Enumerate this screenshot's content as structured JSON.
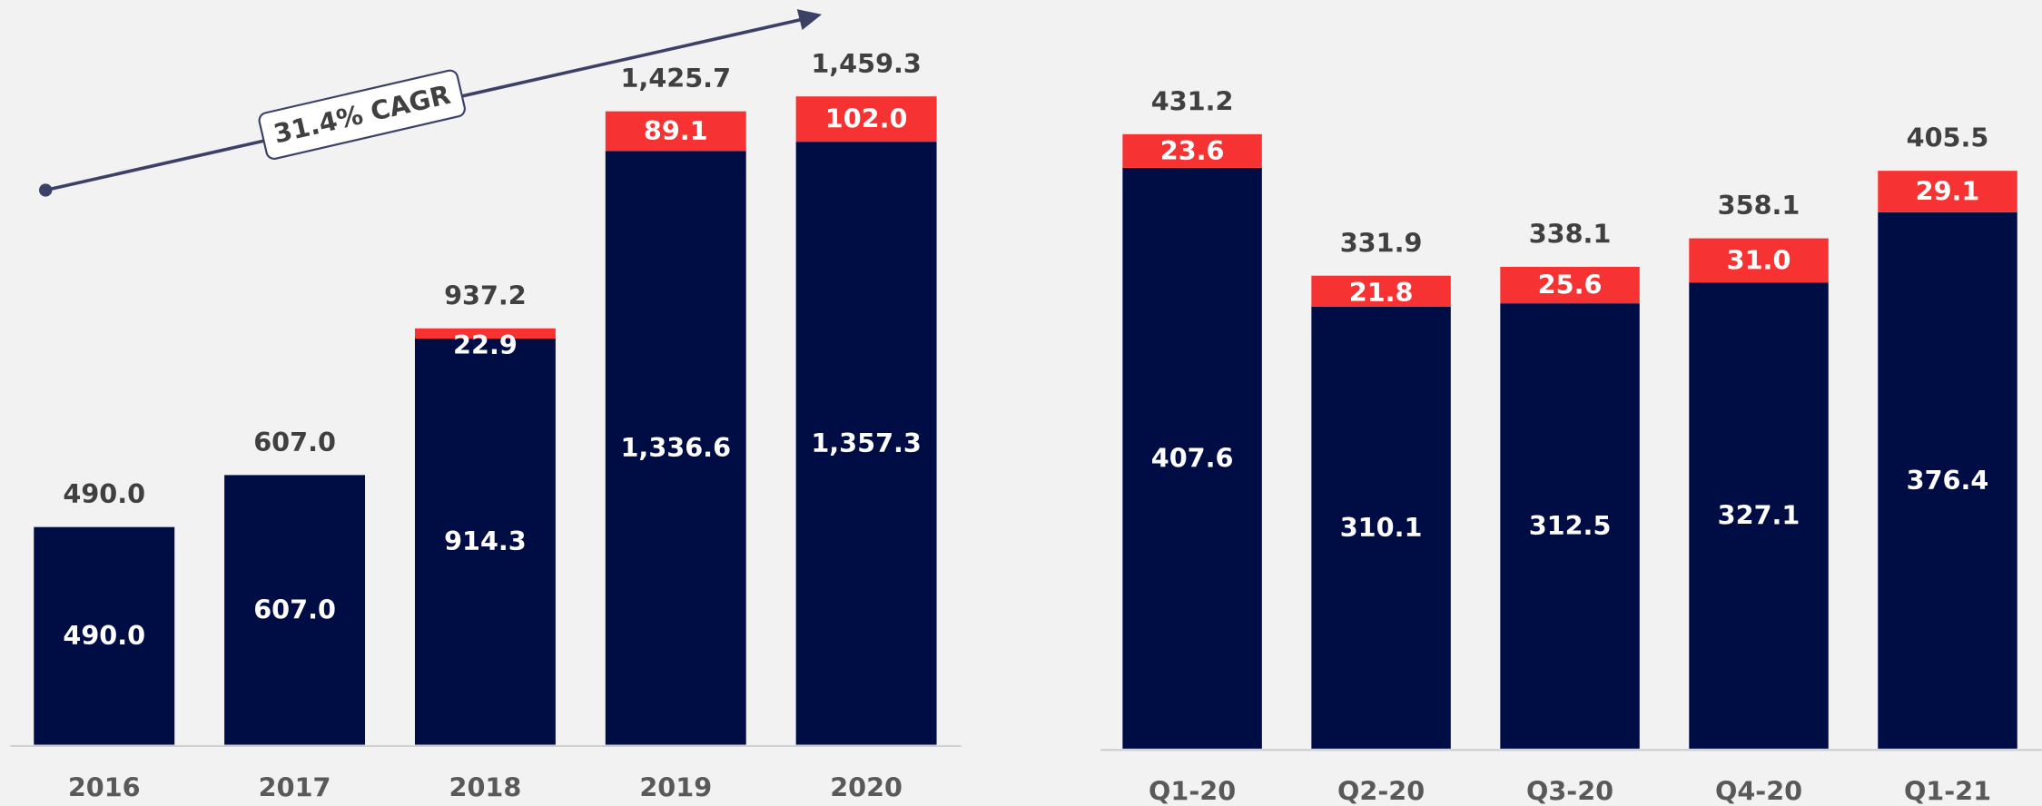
{
  "chart_data": [
    {
      "type": "bar",
      "stacked": true,
      "categories": [
        "2016",
        "2017",
        "2018",
        "2019",
        "2020"
      ],
      "series": [
        {
          "color": "#000d45",
          "values": [
            490.0,
            607.0,
            914.3,
            1336.6,
            1357.3
          ],
          "value_labels": [
            "490.0",
            "607.0",
            "914.3",
            "1,336.6",
            "1,357.3"
          ]
        },
        {
          "color": "#f73232",
          "values": [
            null,
            null,
            22.9,
            89.1,
            102.0
          ],
          "value_labels": [
            null,
            null,
            "22.9",
            "89.1",
            "102.0"
          ]
        }
      ],
      "totals": [
        490.0,
        607.0,
        937.2,
        1425.7,
        1459.3
      ],
      "total_labels": [
        "490.0",
        "607.0",
        "937.2",
        "1,425.7",
        "1,459.3"
      ],
      "annotation": "31.4% CAGR"
    },
    {
      "type": "bar",
      "stacked": true,
      "categories": [
        "Q1-20",
        "Q2-20",
        "Q3-20",
        "Q4-20",
        "Q1-21"
      ],
      "series": [
        {
          "color": "#000d45",
          "values": [
            407.6,
            310.1,
            312.5,
            327.1,
            376.4
          ],
          "value_labels": [
            "407.6",
            "310.1",
            "312.5",
            "327.1",
            "376.4"
          ]
        },
        {
          "color": "#f73232",
          "values": [
            23.6,
            21.8,
            25.6,
            31.0,
            29.1
          ],
          "value_labels": [
            "23.6",
            "21.8",
            "25.6",
            "31.0",
            "29.1"
          ]
        }
      ],
      "totals": [
        431.2,
        331.9,
        338.1,
        358.1,
        405.5
      ],
      "total_labels": [
        "431.2",
        "331.9",
        "338.1",
        "358.1",
        "405.5"
      ]
    }
  ]
}
